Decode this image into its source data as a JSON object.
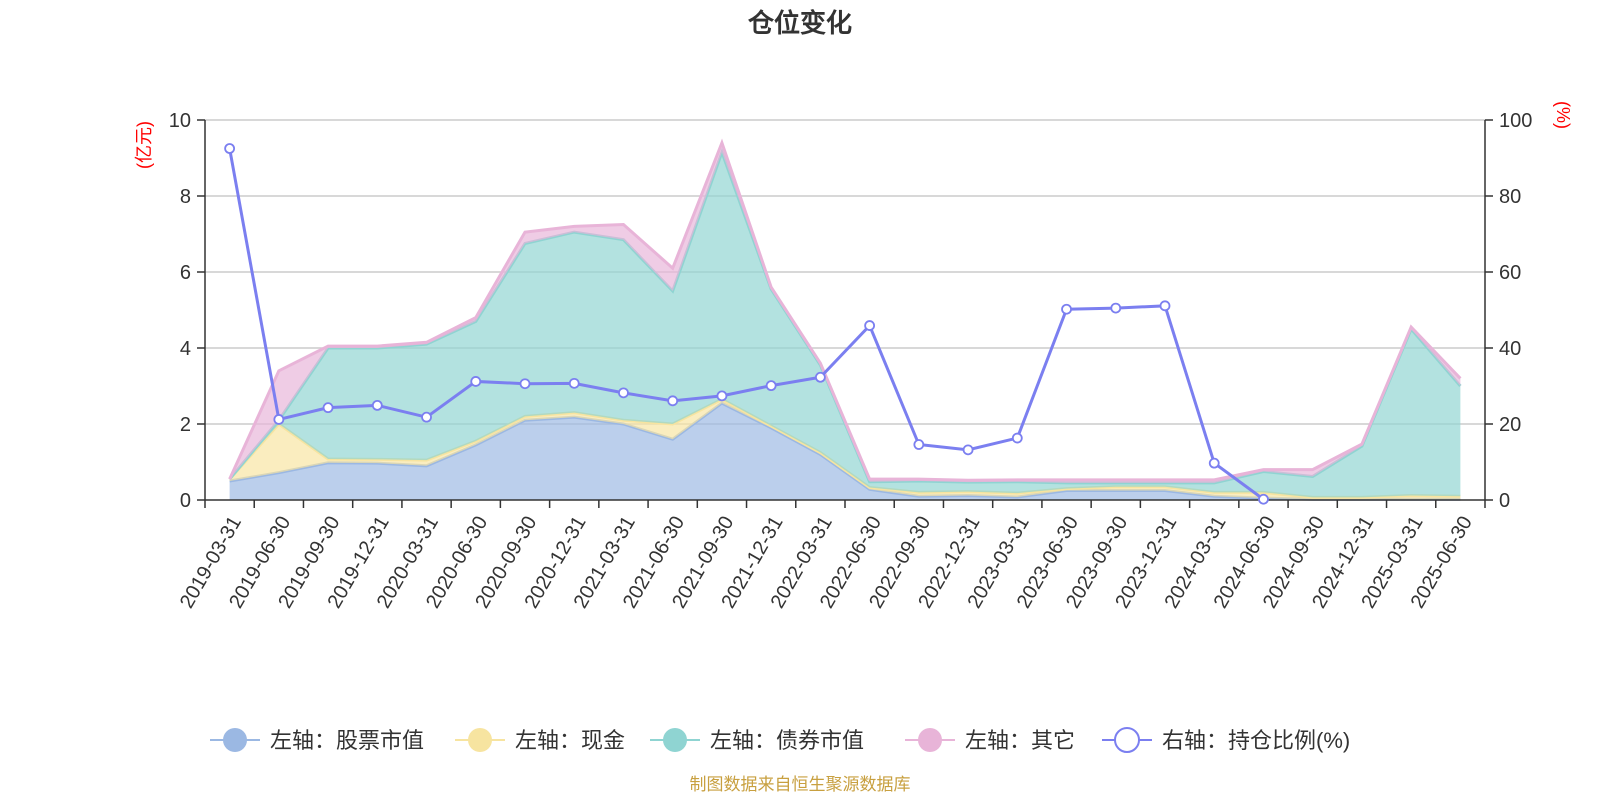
{
  "chart_data": {
    "type": "area",
    "title": "仓位变化",
    "x": [
      "2019-03-31",
      "2019-06-30",
      "2019-09-30",
      "2019-12-31",
      "2020-03-31",
      "2020-06-30",
      "2020-09-30",
      "2020-12-31",
      "2021-03-31",
      "2021-06-30",
      "2021-09-30",
      "2021-12-31",
      "2022-03-31",
      "2022-06-30",
      "2022-09-30",
      "2022-12-31",
      "2023-03-31",
      "2023-06-30",
      "2023-09-30",
      "2023-12-31",
      "2024-03-31",
      "2024-06-30",
      "2024-09-30",
      "2024-12-31",
      "2025-03-31",
      "2025-06-30"
    ],
    "left_axis": {
      "unit": "(亿元)",
      "ylim": [
        0,
        10
      ],
      "ticks": [
        0,
        2,
        4,
        6,
        8,
        10
      ]
    },
    "right_axis": {
      "unit": "(%)",
      "ylim": [
        0,
        100
      ],
      "ticks": [
        0,
        20,
        40,
        60,
        80,
        100
      ]
    },
    "grid": true,
    "legend_position": "bottom",
    "series": [
      {
        "name": "左轴：股票市值",
        "axis": "left",
        "kind": "stacked-area",
        "color": "#9bb8e3",
        "values": [
          0.5,
          0.72,
          0.98,
          0.97,
          0.9,
          1.45,
          2.1,
          2.18,
          2.0,
          1.6,
          2.55,
          1.9,
          1.2,
          0.28,
          0.1,
          0.12,
          0.08,
          0.25,
          0.25,
          0.25,
          0.1,
          0.05,
          0.02,
          0.02,
          0.02,
          0.02
        ]
      },
      {
        "name": "左轴：现金",
        "axis": "left",
        "kind": "stacked-area",
        "color": "#f7e4a0",
        "values": [
          0.05,
          1.28,
          0.1,
          0.1,
          0.15,
          0.1,
          0.1,
          0.12,
          0.1,
          0.4,
          0.1,
          0.05,
          0.05,
          0.05,
          0.1,
          0.1,
          0.1,
          0.05,
          0.1,
          0.1,
          0.1,
          0.15,
          0.05,
          0.05,
          0.1,
          0.08
        ]
      },
      {
        "name": "左轴：债券市值",
        "axis": "left",
        "kind": "stacked-area",
        "color": "#8fd4d2",
        "values": [
          0.0,
          0.1,
          2.92,
          2.93,
          3.05,
          3.15,
          4.55,
          4.75,
          4.75,
          3.5,
          6.5,
          3.6,
          2.3,
          0.15,
          0.3,
          0.25,
          0.3,
          0.15,
          0.1,
          0.1,
          0.25,
          0.55,
          0.55,
          1.35,
          4.38,
          2.9
        ]
      },
      {
        "name": "左轴：其它",
        "axis": "left",
        "kind": "stacked-area",
        "color": "#e8b4d8",
        "values": [
          0.0,
          1.3,
          0.05,
          0.05,
          0.05,
          0.1,
          0.3,
          0.15,
          0.4,
          0.6,
          0.25,
          0.05,
          0.05,
          0.07,
          0.05,
          0.05,
          0.05,
          0.08,
          0.08,
          0.08,
          0.08,
          0.05,
          0.18,
          0.05,
          0.05,
          0.2
        ]
      },
      {
        "name": "右轴：持仓比例(%)",
        "axis": "right",
        "kind": "line",
        "color": "#7b7ff0",
        "values": [
          92.5,
          21.2,
          24.3,
          24.9,
          21.8,
          31.2,
          30.6,
          30.7,
          28.2,
          26.1,
          27.4,
          30.1,
          32.3,
          45.9,
          14.6,
          13.2,
          16.3,
          50.2,
          50.5,
          51.1,
          9.7,
          0.2,
          null,
          null,
          null,
          null
        ]
      }
    ]
  },
  "source": "制图数据来自恒生聚源数据库"
}
